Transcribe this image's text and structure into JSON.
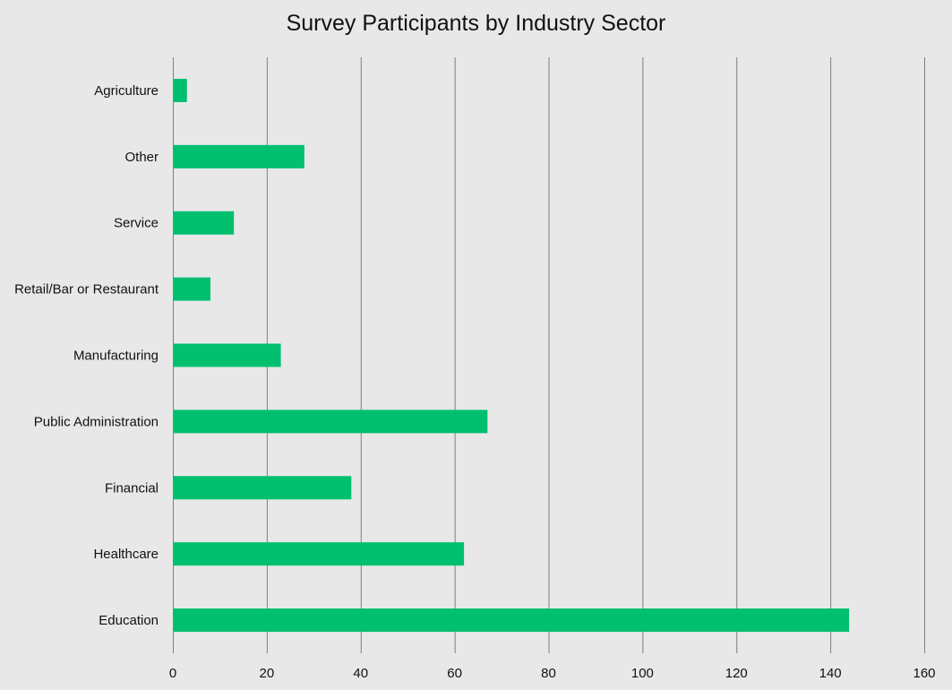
{
  "chart_data": {
    "type": "bar",
    "orientation": "horizontal",
    "title": "Survey Participants by Industry Sector",
    "xlabel": "",
    "ylabel": "",
    "categories": [
      "Agriculture",
      "Other",
      "Service",
      "Retail/Bar or Restaurant",
      "Manufacturing",
      "Public Administration",
      "Financial",
      "Healthcare",
      "Education"
    ],
    "values": [
      3,
      28,
      13,
      8,
      23,
      67,
      38,
      62,
      144
    ],
    "xlim": [
      0,
      160
    ],
    "x_ticks": [
      0,
      20,
      40,
      60,
      80,
      100,
      120,
      140,
      160
    ],
    "grid": "vertical",
    "legend": "none",
    "colors": {
      "bar": "#00bf6f",
      "grid": "#7f7f7f",
      "background": "#e8e8e8"
    }
  }
}
